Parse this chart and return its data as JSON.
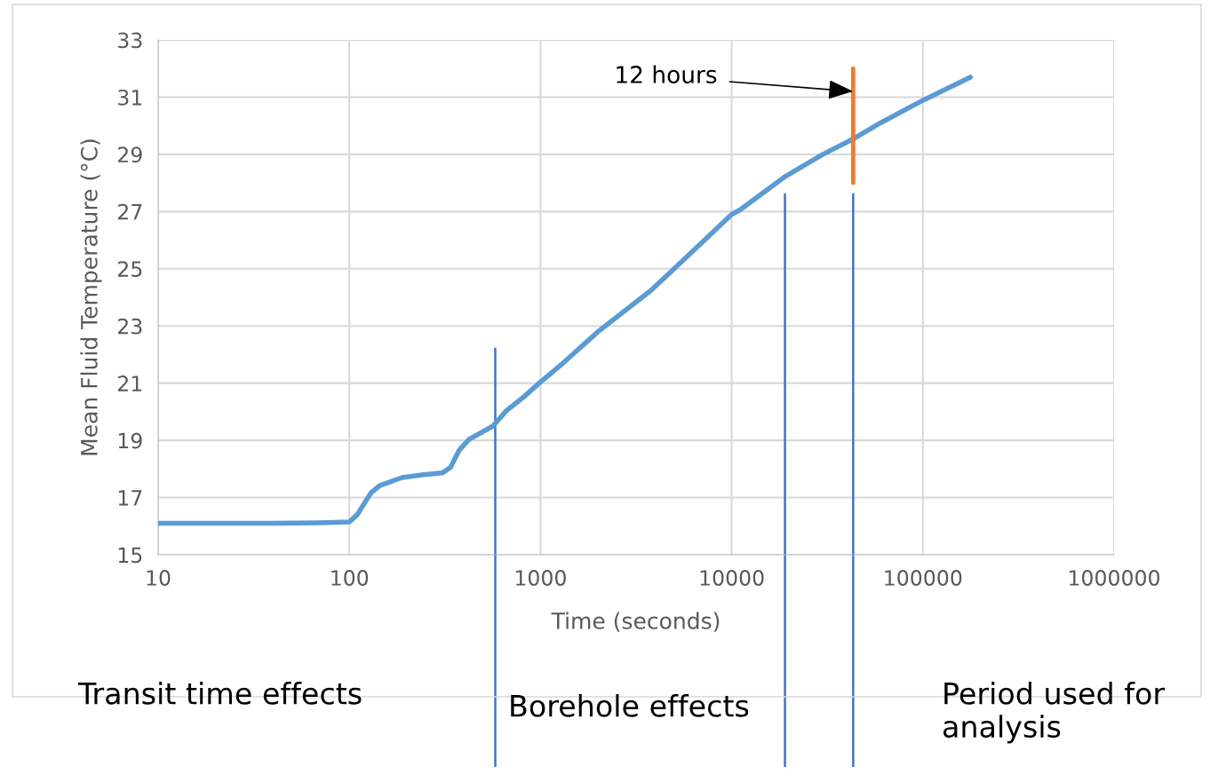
{
  "chart_data": {
    "type": "line",
    "xlabel": "Time (seconds)",
    "ylabel": "Mean Fluid Temperature (°C)",
    "log": "x",
    "xlim": [
      10,
      1000000
    ],
    "xticks": [
      10,
      100,
      1000,
      10000,
      100000,
      1000000
    ],
    "ylim": [
      15,
      33
    ],
    "yticks": [
      15,
      17,
      19,
      21,
      23,
      25,
      27,
      29,
      31,
      33
    ],
    "grid": true,
    "marker": "none",
    "line_style": "solid",
    "series": [
      {
        "color": "#5b9bd5",
        "x": [
          10,
          20,
          40,
          70,
          100,
          110,
          130,
          144,
          189,
          245,
          306,
          338,
          376,
          422,
          564,
          662,
          820,
          984,
          1300,
          2000,
          3790,
          5000,
          10000,
          11000,
          18800,
          30000,
          43000,
          60000,
          100900,
          177000
        ],
        "values": [
          16.1,
          16.1,
          16.1,
          16.12,
          16.15,
          16.4,
          17.17,
          17.42,
          17.7,
          17.8,
          17.86,
          18.05,
          18.66,
          19.03,
          19.5,
          20.03,
          20.53,
          21.0,
          21.68,
          22.8,
          24.25,
          25.0,
          26.9,
          27.05,
          28.2,
          29.0,
          29.53,
          30.1,
          30.9,
          31.7
        ]
      },
      {
        "color": "#ed7d31",
        "x": [
          43200,
          43200
        ],
        "values": [
          28,
          32
        ]
      }
    ],
    "ref_lines": [
      {
        "axis": "x",
        "value": 580,
        "color": "#4472c4"
      },
      {
        "axis": "x",
        "value": 19000,
        "color": "#4472c4"
      },
      {
        "axis": "x",
        "value": 43200,
        "color": "#4472c4"
      }
    ],
    "annotations": [
      {
        "text": "12 hours",
        "x": 43200,
        "y": 31.2
      },
      "Transit time effects",
      "Borehole effects",
      "Period used for analysis"
    ]
  }
}
